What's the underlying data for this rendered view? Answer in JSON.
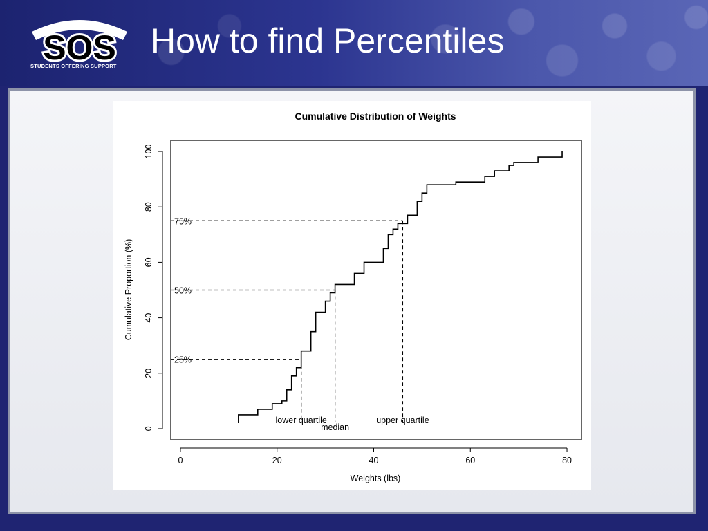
{
  "header": {
    "title": "How to find Percentiles",
    "logo_text": "SOS",
    "logo_tagline": "STUDENTS OFFERING SUPPORT"
  },
  "chart_data": {
    "type": "line",
    "subtype": "step-ecdf",
    "title": "Cumulative Distribution of Weights",
    "xlabel": "Weights (lbs)",
    "ylabel": "Cumulative Proportion (%)",
    "xlim": [
      -2,
      83
    ],
    "ylim": [
      -4,
      104
    ],
    "xticks": [
      0,
      20,
      40,
      60,
      80
    ],
    "yticks": [
      0,
      20,
      40,
      60,
      80,
      100
    ],
    "grid": false,
    "steps": [
      [
        12,
        2
      ],
      [
        12,
        5
      ],
      [
        16,
        7
      ],
      [
        19,
        9
      ],
      [
        21,
        10
      ],
      [
        22,
        14
      ],
      [
        23,
        19
      ],
      [
        24,
        22
      ],
      [
        25,
        28
      ],
      [
        27,
        35
      ],
      [
        28,
        42
      ],
      [
        30,
        46
      ],
      [
        31,
        49
      ],
      [
        32,
        52
      ],
      [
        36,
        56
      ],
      [
        38,
        60
      ],
      [
        42,
        65
      ],
      [
        43,
        70
      ],
      [
        44,
        72
      ],
      [
        45,
        74
      ],
      [
        47,
        77
      ],
      [
        49,
        82
      ],
      [
        50,
        85
      ],
      [
        51,
        88
      ],
      [
        57,
        89
      ],
      [
        63,
        91
      ],
      [
        65,
        93
      ],
      [
        68,
        95
      ],
      [
        69,
        96
      ],
      [
        74,
        98
      ],
      [
        79,
        100
      ]
    ],
    "x_end": 79,
    "percentiles": [
      {
        "label": "25%",
        "y": 25,
        "x": 25,
        "name": "lower quartile"
      },
      {
        "label": "50%",
        "y": 50,
        "x": 32,
        "name": "median"
      },
      {
        "label": "75%",
        "y": 75,
        "x": 46,
        "name": "upper quartile"
      }
    ]
  }
}
